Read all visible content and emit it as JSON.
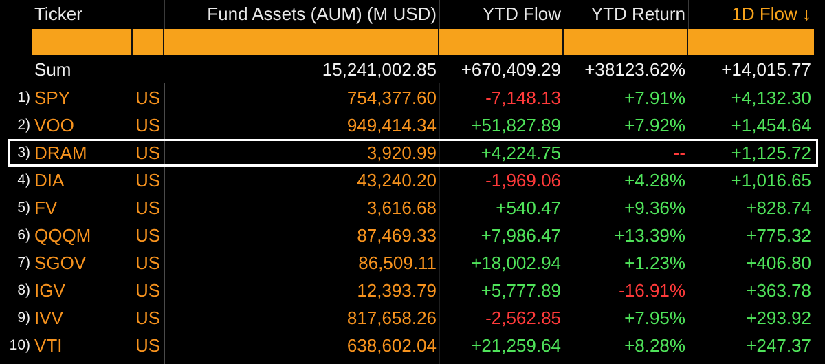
{
  "columns": {
    "ticker": "Ticker",
    "aum": "Fund Assets (AUM) (M USD)",
    "ytd_flow": "YTD Flow",
    "ytd_return": "YTD Return",
    "d1_flow": "1D Flow ↓"
  },
  "sum": {
    "label": "Sum",
    "aum": "15,241,002.85",
    "ytd_flow": "+670,409.29",
    "ytd_return": "+38123.62%",
    "d1_flow": "+14,015.77"
  },
  "rows": [
    {
      "num": "1)",
      "ticker": "SPY",
      "exch": "US",
      "aum": "754,377.60",
      "ytd_flow": "-7,148.13",
      "ytd_return": "+7.91%",
      "d1_flow": "+4,132.30",
      "ytd_flow_color": "red",
      "ytd_return_color": "green"
    },
    {
      "num": "2)",
      "ticker": "VOO",
      "exch": "US",
      "aum": "949,414.34",
      "ytd_flow": "+51,827.89",
      "ytd_return": "+7.92%",
      "d1_flow": "+1,454.64",
      "ytd_flow_color": "green",
      "ytd_return_color": "green"
    },
    {
      "num": "3)",
      "ticker": "DRAM",
      "exch": "US",
      "aum": "3,920.99",
      "ytd_flow": "+4,224.75",
      "ytd_return": "--",
      "d1_flow": "+1,125.72",
      "ytd_flow_color": "green",
      "ytd_return_color": "red"
    },
    {
      "num": "4)",
      "ticker": "DIA",
      "exch": "US",
      "aum": "43,240.20",
      "ytd_flow": "-1,969.06",
      "ytd_return": "+4.28%",
      "d1_flow": "+1,016.65",
      "ytd_flow_color": "red",
      "ytd_return_color": "green"
    },
    {
      "num": "5)",
      "ticker": "FV",
      "exch": "US",
      "aum": "3,616.68",
      "ytd_flow": "+540.47",
      "ytd_return": "+9.36%",
      "d1_flow": "+828.74",
      "ytd_flow_color": "green",
      "ytd_return_color": "green"
    },
    {
      "num": "6)",
      "ticker": "QQQM",
      "exch": "US",
      "aum": "87,469.33",
      "ytd_flow": "+7,986.47",
      "ytd_return": "+13.39%",
      "d1_flow": "+775.32",
      "ytd_flow_color": "green",
      "ytd_return_color": "green"
    },
    {
      "num": "7)",
      "ticker": "SGOV",
      "exch": "US",
      "aum": "86,509.11",
      "ytd_flow": "+18,002.94",
      "ytd_return": "+1.23%",
      "d1_flow": "+406.80",
      "ytd_flow_color": "green",
      "ytd_return_color": "green"
    },
    {
      "num": "8)",
      "ticker": "IGV",
      "exch": "US",
      "aum": "12,393.79",
      "ytd_flow": "+5,777.89",
      "ytd_return": "-16.91%",
      "d1_flow": "+363.78",
      "ytd_flow_color": "green",
      "ytd_return_color": "red"
    },
    {
      "num": "9)",
      "ticker": "IVV",
      "exch": "US",
      "aum": "817,658.26",
      "ytd_flow": "-2,562.85",
      "ytd_return": "+7.95%",
      "d1_flow": "+293.92",
      "ytd_flow_color": "red",
      "ytd_return_color": "green"
    },
    {
      "num": "10)",
      "ticker": "VTI",
      "exch": "US",
      "aum": "638,602.04",
      "ytd_flow": "+21,259.64",
      "ytd_return": "+8.28%",
      "d1_flow": "+247.37",
      "ytd_flow_color": "green",
      "ytd_return_color": "green"
    }
  ],
  "colors": {
    "orange": "#f7931e",
    "header_accent": "#f7a21b",
    "green": "#4fe35a",
    "red": "#ff3a3a",
    "background": "#000000"
  }
}
